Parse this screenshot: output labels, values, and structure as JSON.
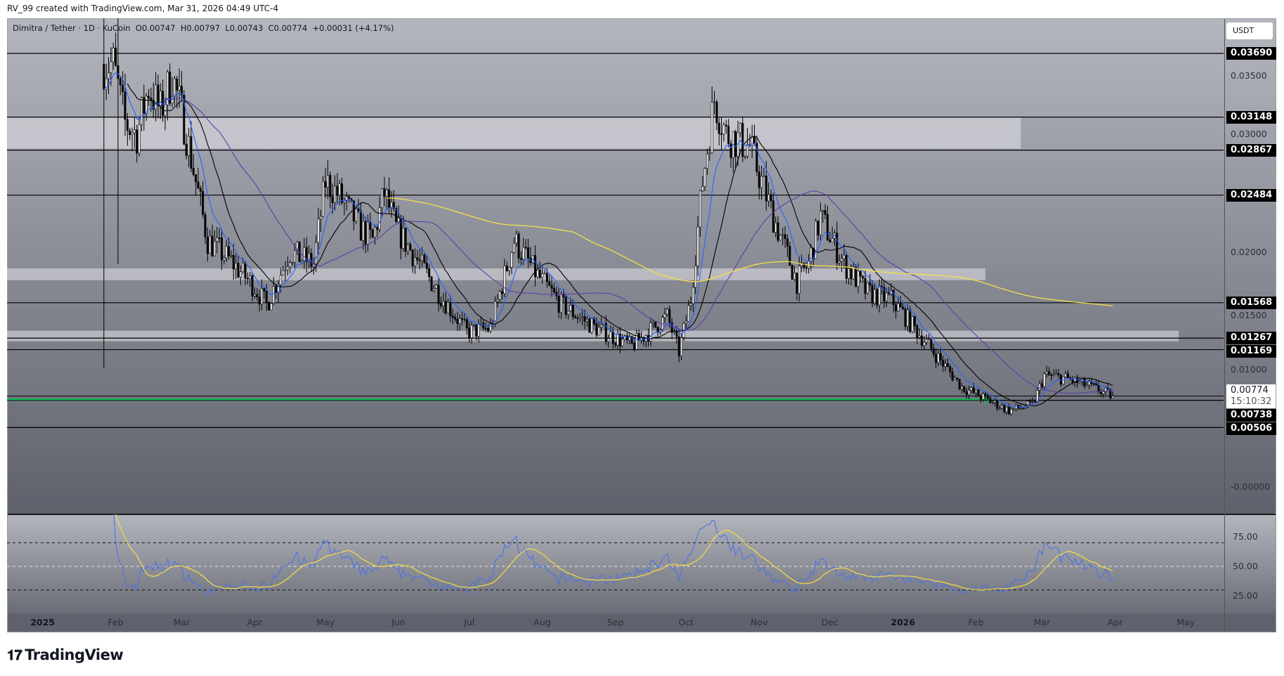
{
  "header": {
    "credit": "RV_99 created with TradingView.com, Mar 31, 2026 04:49 UTC-4"
  },
  "legend": {
    "symbol": "Dimitra / Tether · 1D · KuCoin",
    "open": "O0.00747",
    "high": "H0.00797",
    "low": "L0.00743",
    "close": "C0.00774",
    "change": "+0.00031 (+4.17%)"
  },
  "currency_button": "USDT",
  "logo": {
    "mark": "17",
    "text": "TradingView"
  },
  "chart_data": {
    "type": "candlestick",
    "title": "Dimitra / Tether · 1D · KuCoin",
    "start_date": "2025-01-01",
    "ylim": [
      -0.0001,
      0.0399
    ],
    "price_ticks": [
      "0.03500",
      "0.03000",
      "0.02000",
      "0.01500",
      "0.01000",
      "-0.00000"
    ],
    "price_tick_values": [
      0.035,
      0.03,
      0.02,
      0.015,
      0.01,
      0
    ],
    "price_levels": [
      {
        "value": 0.0369,
        "label": "0.03690"
      },
      {
        "value": 0.03148,
        "label": "0.03148"
      },
      {
        "value": 0.02867,
        "label": "0.02867"
      },
      {
        "value": 0.02484,
        "label": "0.02484"
      },
      {
        "value": 0.01568,
        "label": "0.01568"
      },
      {
        "value": 0.01267,
        "label": "0.01267"
      },
      {
        "value": 0.01169,
        "label": "0.01169"
      },
      {
        "value": 0.00738,
        "label": "0.00738"
      },
      {
        "value": 0.00506,
        "label": "0.00506"
      }
    ],
    "current_price": {
      "value": 0.00774,
      "label": "0.00774",
      "countdown": "15:10:32"
    },
    "zones": [
      {
        "from": 0.0288,
        "to": 0.0315,
        "end_day": 415
      },
      {
        "from": 0.0176,
        "to": 0.0186,
        "end_day": 400
      },
      {
        "from": 0.0124,
        "to": 0.0133,
        "end_day": 482
      }
    ],
    "support_line": {
      "value": 0.00745,
      "color": "#00c853",
      "end_day": 402
    },
    "keypoints": [
      [
        26,
        0.036
      ],
      [
        30,
        0.036
      ],
      [
        35,
        0.031
      ],
      [
        40,
        0.03
      ],
      [
        45,
        0.034
      ],
      [
        50,
        0.032
      ],
      [
        55,
        0.035
      ],
      [
        60,
        0.031
      ],
      [
        65,
        0.026
      ],
      [
        70,
        0.021
      ],
      [
        80,
        0.0192
      ],
      [
        90,
        0.017
      ],
      [
        95,
        0.0155
      ],
      [
        105,
        0.02
      ],
      [
        115,
        0.019
      ],
      [
        120,
        0.026
      ],
      [
        125,
        0.025
      ],
      [
        135,
        0.022
      ],
      [
        140,
        0.021
      ],
      [
        145,
        0.025
      ],
      [
        150,
        0.022
      ],
      [
        160,
        0.019
      ],
      [
        170,
        0.016
      ],
      [
        180,
        0.0132
      ],
      [
        190,
        0.0135
      ],
      [
        200,
        0.021
      ],
      [
        210,
        0.018
      ],
      [
        220,
        0.0155
      ],
      [
        235,
        0.0135
      ],
      [
        250,
        0.012
      ],
      [
        265,
        0.0145
      ],
      [
        270,
        0.0115
      ],
      [
        275,
        0.016
      ],
      [
        280,
        0.026
      ],
      [
        285,
        0.033
      ],
      [
        290,
        0.03
      ],
      [
        300,
        0.029
      ],
      [
        310,
        0.023
      ],
      [
        320,
        0.0175
      ],
      [
        325,
        0.019
      ],
      [
        330,
        0.023
      ],
      [
        340,
        0.019
      ],
      [
        350,
        0.0165
      ],
      [
        360,
        0.016
      ],
      [
        370,
        0.0135
      ],
      [
        380,
        0.011
      ],
      [
        390,
        0.0085
      ],
      [
        400,
        0.0075
      ],
      [
        410,
        0.0065
      ],
      [
        420,
        0.007
      ],
      [
        425,
        0.0095
      ],
      [
        435,
        0.0092
      ],
      [
        445,
        0.0085
      ],
      [
        454,
        0.00774
      ]
    ],
    "spikes": [
      {
        "day": 26,
        "high": 0.0399,
        "low": 0.0101
      },
      {
        "day": 32,
        "high": 0.0399,
        "low": 0.019
      }
    ],
    "moving_averages": [
      {
        "name": "MA20",
        "period": 20,
        "color": "#000000"
      },
      {
        "name": "EMA10",
        "period": 10,
        "color": "#2962ff"
      },
      {
        "name": "MA50",
        "period": 50,
        "color": "#5b3fa8"
      },
      {
        "name": "MA200",
        "period": 200,
        "color": "#f5e04a"
      }
    ],
    "time_ticks": [
      {
        "label": "2025",
        "day": 0,
        "bold": true
      },
      {
        "label": "Feb",
        "day": 31
      },
      {
        "label": "Mar",
        "day": 59
      },
      {
        "label": "Apr",
        "day": 90
      },
      {
        "label": "May",
        "day": 120
      },
      {
        "label": "Jun",
        "day": 151
      },
      {
        "label": "Jul",
        "day": 181
      },
      {
        "label": "Aug",
        "day": 212
      },
      {
        "label": "Sep",
        "day": 243
      },
      {
        "label": "Oct",
        "day": 273
      },
      {
        "label": "Nov",
        "day": 304
      },
      {
        "label": "Dec",
        "day": 334
      },
      {
        "label": "2026",
        "day": 365,
        "bold": true
      },
      {
        "label": "Feb",
        "day": 396
      },
      {
        "label": "Mar",
        "day": 424
      },
      {
        "label": "Apr",
        "day": 455
      },
      {
        "label": "May",
        "day": 485
      }
    ],
    "rsi": {
      "period": 14,
      "ma_period": 14,
      "levels": [
        70,
        50,
        30
      ],
      "ticks": [
        "75.00",
        "50.00",
        "25.00"
      ],
      "tick_values": [
        75,
        50,
        25
      ],
      "line_color": "#4a72e8",
      "ma_color": "#f0d84a"
    }
  }
}
